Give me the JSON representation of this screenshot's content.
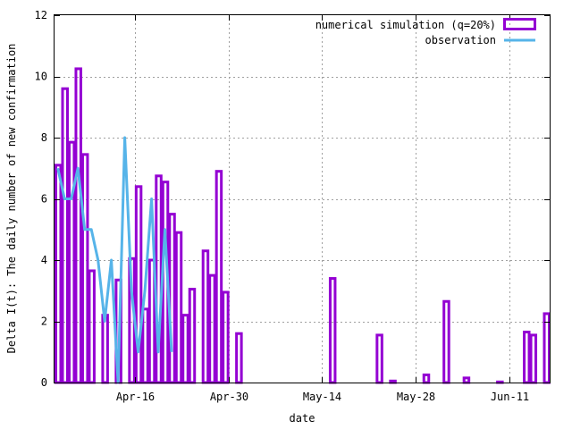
{
  "chart_data": {
    "type": "bar",
    "xlabel": "date",
    "ylabel": "Delta I(t): The daily number of new confirmation",
    "ylim": [
      0,
      12
    ],
    "yticks": [
      0,
      2,
      4,
      6,
      8,
      10,
      12
    ],
    "xlim": [
      "2020-04-04",
      "2020-06-16"
    ],
    "xticks": [
      {
        "date": "2020-04-16",
        "label": "Apr-16"
      },
      {
        "date": "2020-04-30",
        "label": "Apr-30"
      },
      {
        "date": "2020-05-14",
        "label": "May-14"
      },
      {
        "date": "2020-05-28",
        "label": "May-28"
      },
      {
        "date": "2020-06-11",
        "label": "Jun-11"
      }
    ],
    "grid": true,
    "legend_position": "top-right",
    "series": [
      {
        "name": "numerical simulation (q=20%)",
        "type": "bar",
        "color": "#9400d3",
        "points": [
          {
            "date": "2020-04-04",
            "value": 7.1
          },
          {
            "date": "2020-04-05",
            "value": 9.6
          },
          {
            "date": "2020-04-06",
            "value": 7.85
          },
          {
            "date": "2020-04-07",
            "value": 10.25
          },
          {
            "date": "2020-04-08",
            "value": 7.45
          },
          {
            "date": "2020-04-09",
            "value": 3.65
          },
          {
            "date": "2020-04-11",
            "value": 2.2
          },
          {
            "date": "2020-04-13",
            "value": 3.35
          },
          {
            "date": "2020-04-15",
            "value": 4.05
          },
          {
            "date": "2020-04-16",
            "value": 6.4
          },
          {
            "date": "2020-04-17",
            "value": 2.4
          },
          {
            "date": "2020-04-18",
            "value": 4.0
          },
          {
            "date": "2020-04-19",
            "value": 6.75
          },
          {
            "date": "2020-04-20",
            "value": 6.55
          },
          {
            "date": "2020-04-21",
            "value": 5.5
          },
          {
            "date": "2020-04-22",
            "value": 4.9
          },
          {
            "date": "2020-04-23",
            "value": 2.2
          },
          {
            "date": "2020-04-24",
            "value": 3.05
          },
          {
            "date": "2020-04-26",
            "value": 4.3
          },
          {
            "date": "2020-04-27",
            "value": 3.5
          },
          {
            "date": "2020-04-28",
            "value": 6.9
          },
          {
            "date": "2020-04-29",
            "value": 2.95
          },
          {
            "date": "2020-05-01",
            "value": 1.6
          },
          {
            "date": "2020-05-15",
            "value": 3.4
          },
          {
            "date": "2020-05-22",
            "value": 1.55
          },
          {
            "date": "2020-05-24",
            "value": 0.05
          },
          {
            "date": "2020-05-29",
            "value": 0.25
          },
          {
            "date": "2020-06-01",
            "value": 2.65
          },
          {
            "date": "2020-06-04",
            "value": 0.15
          },
          {
            "date": "2020-06-09",
            "value": 0.02
          },
          {
            "date": "2020-06-13",
            "value": 1.65
          },
          {
            "date": "2020-06-14",
            "value": 1.55
          },
          {
            "date": "2020-06-16",
            "value": 2.25
          }
        ]
      },
      {
        "name": "observation",
        "type": "line",
        "color": "#56b4e9",
        "points": [
          {
            "date": "2020-04-04",
            "value": 7
          },
          {
            "date": "2020-04-05",
            "value": 6
          },
          {
            "date": "2020-04-06",
            "value": 6
          },
          {
            "date": "2020-04-07",
            "value": 7
          },
          {
            "date": "2020-04-08",
            "value": 5
          },
          {
            "date": "2020-04-09",
            "value": 5
          },
          {
            "date": "2020-04-10",
            "value": 4
          },
          {
            "date": "2020-04-11",
            "value": 2
          },
          {
            "date": "2020-04-12",
            "value": 4
          },
          {
            "date": "2020-04-13",
            "value": 0
          },
          {
            "date": "2020-04-14",
            "value": 8
          },
          {
            "date": "2020-04-15",
            "value": 3
          },
          {
            "date": "2020-04-16",
            "value": 1
          },
          {
            "date": "2020-04-17",
            "value": 3
          },
          {
            "date": "2020-04-18",
            "value": 6
          },
          {
            "date": "2020-04-19",
            "value": 1
          },
          {
            "date": "2020-04-20",
            "value": 5
          },
          {
            "date": "2020-04-21",
            "value": 1
          }
        ]
      }
    ]
  }
}
